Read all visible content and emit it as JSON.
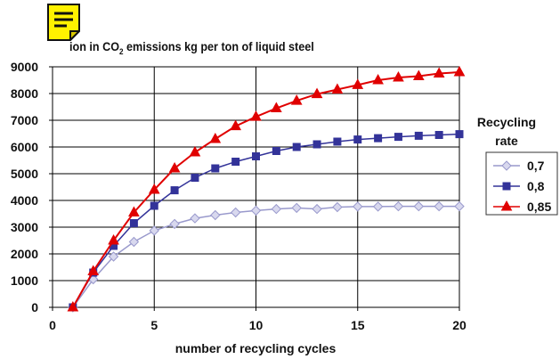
{
  "chart_data": {
    "type": "line",
    "title_pre": "ion in CO",
    "title_sub": "2",
    "title_post": " emissions kg per ton of liquid steel",
    "xlabel": "number of recycling cycles",
    "ylabel": "",
    "xlim": [
      0,
      20
    ],
    "ylim": [
      0,
      9000
    ],
    "x_ticks": [
      "0",
      "5",
      "10",
      "15",
      "20"
    ],
    "y_ticks": [
      "0",
      "1000",
      "2000",
      "3000",
      "4000",
      "5000",
      "6000",
      "7000",
      "8000",
      "9000"
    ],
    "grid": true,
    "legend_title_line1": "Recycling",
    "legend_title_line2": "rate",
    "legend_placement": "right",
    "x": [
      1,
      2,
      3,
      4,
      5,
      6,
      7,
      8,
      9,
      10,
      11,
      12,
      13,
      14,
      15,
      16,
      17,
      18,
      19,
      20
    ],
    "series": [
      {
        "name": "0,7",
        "color": "#9999CC",
        "marker": "diamond",
        "values": [
          0,
          1050,
          1900,
          2450,
          2870,
          3120,
          3330,
          3450,
          3550,
          3620,
          3680,
          3720,
          3680,
          3750,
          3770,
          3770,
          3780,
          3780,
          3780,
          3780
        ]
      },
      {
        "name": "0,8",
        "color": "#333399",
        "marker": "square",
        "values": [
          0,
          1300,
          2300,
          3150,
          3800,
          4380,
          4850,
          5200,
          5450,
          5650,
          5850,
          6000,
          6100,
          6200,
          6280,
          6330,
          6380,
          6420,
          6450,
          6480
        ]
      },
      {
        "name": "0,85",
        "color": "#E00000",
        "marker": "triangle",
        "values": [
          0,
          1350,
          2500,
          3550,
          4400,
          5200,
          5800,
          6300,
          6780,
          7130,
          7450,
          7730,
          7980,
          8150,
          8320,
          8500,
          8600,
          8650,
          8750,
          8800
        ]
      }
    ]
  }
}
